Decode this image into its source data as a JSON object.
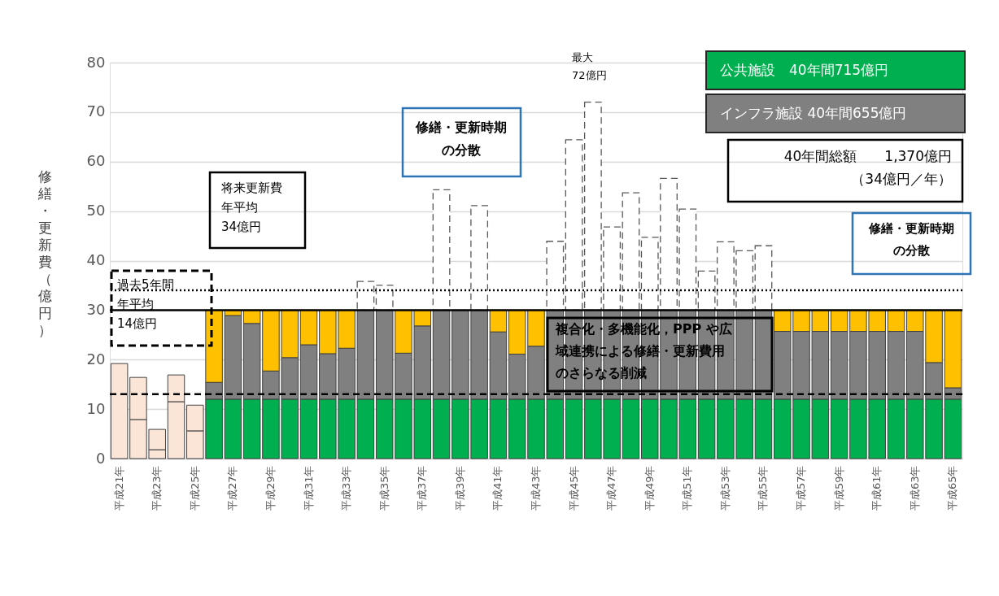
{
  "chart_data": {
    "type": "bar",
    "stacked": true,
    "ylabel": "修繕・更新費（億円）",
    "categories": [
      "平成21年",
      null,
      "平成23年",
      null,
      "平成25年",
      null,
      "平成27年",
      null,
      "平成29年",
      null,
      "平成31年",
      null,
      "平成33年",
      null,
      "平成35年",
      null,
      "平成37年",
      null,
      "平成39年",
      null,
      "平成41年",
      null,
      "平成43年",
      null,
      "平成45年",
      null,
      "平成47年",
      null,
      "平成49年",
      null,
      "平成51年",
      null,
      "平成53年",
      null,
      "平成55年",
      null,
      "平成57年",
      null,
      "平成59年",
      null,
      "平成61年",
      null,
      "平成63年",
      null,
      "平成65年"
    ],
    "series": [
      {
        "color": "#fbe5d6",
        "values": [
          19.2,
          7.9,
          1.8,
          11.5,
          5.6,
          null,
          null,
          null,
          null,
          null,
          null,
          null,
          null,
          null,
          null,
          null,
          null,
          null,
          null,
          null,
          null,
          null,
          null,
          null,
          null,
          null,
          null,
          null,
          null,
          null,
          null,
          null,
          null,
          null,
          null,
          null,
          null,
          null,
          null,
          null,
          null,
          null,
          null,
          null,
          null
        ]
      },
      {
        "color": "#fbe5d6",
        "values": [
          null,
          8.5,
          4.1,
          5.4,
          5.2,
          null,
          null,
          null,
          null,
          null,
          null,
          null,
          null,
          null,
          null,
          null,
          null,
          null,
          null,
          null,
          null,
          null,
          null,
          null,
          null,
          null,
          null,
          null,
          null,
          null,
          null,
          null,
          null,
          null,
          null,
          null,
          null,
          null,
          null,
          null,
          null,
          null,
          null,
          null,
          null
        ]
      },
      {
        "name": "公共施設　40年間715億円",
        "color": "#00b050",
        "values": [
          null,
          null,
          null,
          null,
          null,
          12,
          12,
          12,
          12,
          12,
          12,
          12,
          12,
          12,
          12,
          12,
          12,
          12,
          12,
          12,
          12,
          12,
          12,
          12,
          12,
          12,
          12,
          12,
          12,
          12,
          12,
          12,
          12,
          12,
          12,
          12,
          12,
          12,
          12,
          12,
          12,
          12,
          12,
          12,
          12
        ]
      },
      {
        "name": "インフラ施設 40年間655億円",
        "color": "#808080",
        "values": [
          null,
          null,
          null,
          null,
          null,
          3.4,
          16.9,
          15.3,
          5.7,
          8.4,
          11,
          9.2,
          10.3,
          18,
          18,
          9.3,
          14.8,
          18,
          18,
          18,
          13.6,
          9.1,
          10.7,
          18,
          18,
          18,
          18,
          18,
          18,
          18,
          18,
          18,
          18,
          18,
          18,
          13.7,
          13.7,
          13.7,
          13.7,
          13.7,
          13.7,
          13.7,
          13.7,
          7.4,
          2.3
        ]
      },
      {
        "color": "#ffc000",
        "values": [
          null,
          null,
          null,
          null,
          null,
          14.6,
          1.1,
          2.7,
          12.3,
          9.6,
          7,
          8.8,
          7.7,
          null,
          null,
          8.7,
          3.2,
          null,
          null,
          null,
          4.4,
          8.9,
          7.3,
          null,
          null,
          null,
          null,
          null,
          null,
          null,
          null,
          null,
          null,
          null,
          null,
          4.3,
          4.3,
          4.3,
          4.3,
          4.3,
          4.3,
          4.3,
          4.3,
          10.6,
          15.7
        ]
      },
      {
        "color": "#ffffff",
        "line_style": "dashed",
        "values": [
          null,
          null,
          null,
          null,
          null,
          null,
          null,
          null,
          null,
          null,
          null,
          null,
          null,
          5.8,
          5.0,
          null,
          null,
          24.3,
          null,
          21.1,
          null,
          null,
          null,
          13.9,
          34.4,
          42,
          16.8,
          23.7,
          14.7,
          26.6,
          20.4,
          7.9,
          13.8,
          12.0,
          13.0,
          null,
          null,
          null,
          null,
          null,
          null,
          null,
          null,
          null,
          null
        ]
      }
    ],
    "ylim": [
      0,
      80
    ],
    "yticks": [
      0,
      10,
      20,
      30,
      40,
      50,
      60,
      70,
      80
    ],
    "grid": "y",
    "legend": "top right",
    "ref_lines": [
      {
        "axis": "y",
        "value": 34,
        "line_style": "dotted"
      },
      {
        "axis": "y",
        "value": 30,
        "line_style": "solid"
      },
      {
        "axis": "y",
        "value": 13,
        "line_style": "dashed"
      }
    ],
    "annotations": [
      "将来更新費年平均34億円",
      "過去5年間年平均14億円",
      "修繕・更新時期の分散",
      "最大72億円",
      "40年間総額　　1,370億円（34億円／年）",
      "修繕・更新時期の分散",
      "複合化・多機能化，PPP や広域連携による修繕・更新費用のさらなる削減"
    ]
  }
}
